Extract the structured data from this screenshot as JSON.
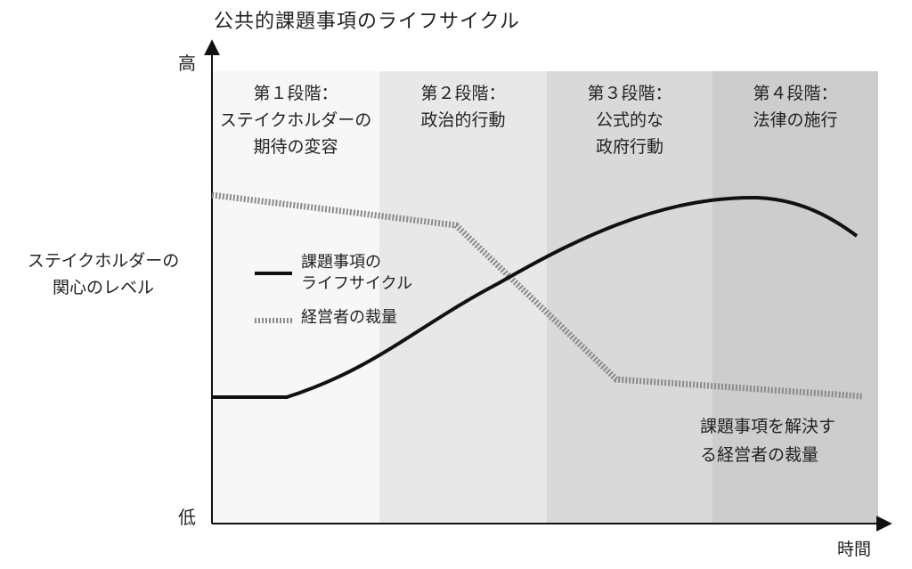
{
  "title": "公共的課題事項のライフサイクル",
  "y_axis": {
    "label_lines": [
      "ステイクホルダーの",
      "関心のレベル"
    ],
    "high": "高",
    "low": "低"
  },
  "x_axis": {
    "label": "時間"
  },
  "stages": [
    {
      "lines": [
        "第１段階：",
        "ステイクホルダーの",
        "期待の変容"
      ],
      "color": "#f7f7f7"
    },
    {
      "lines": [
        "第２段階：",
        "政治的行動"
      ],
      "color": "#e8e8e8"
    },
    {
      "lines": [
        "第３段階：",
        "公式的な",
        "政府行動"
      ],
      "color": "#d9d9d9"
    },
    {
      "lines": [
        "第４段階：",
        "法律の施行"
      ],
      "color": "#cdcdcd"
    }
  ],
  "legend": [
    {
      "lines": [
        "課題事項の",
        "ライフサイクル"
      ],
      "style": "solid"
    },
    {
      "lines": [
        "経営者の裁量"
      ],
      "style": "dotted"
    }
  ],
  "annotation": {
    "lines": [
      "課題事項を解決す",
      "る経営者の裁量"
    ]
  }
}
